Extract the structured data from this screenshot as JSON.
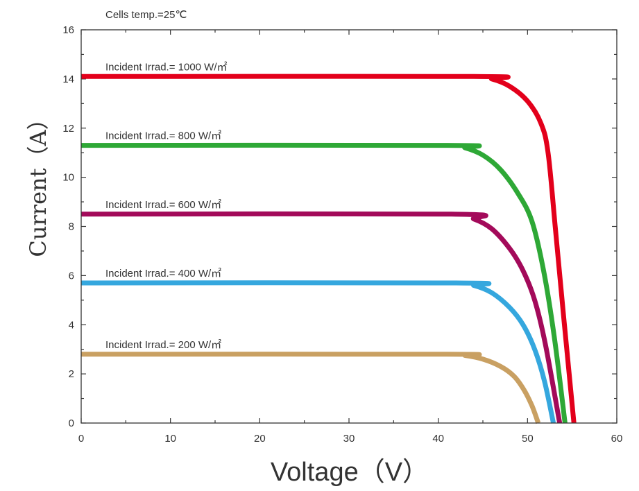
{
  "chart_data": {
    "type": "line",
    "title": "",
    "annotation": "Cells temp.=25℃",
    "xlabel": "Voltage（V）",
    "ylabel": "Current（A）",
    "xlim": [
      0,
      60
    ],
    "ylim": [
      0,
      16
    ],
    "xticks": [
      0,
      10,
      20,
      30,
      40,
      50,
      60
    ],
    "yticks": [
      0,
      2,
      4,
      6,
      8,
      10,
      12,
      14,
      16
    ],
    "grid": false,
    "series": [
      {
        "name": "Incident Irrad.= 1000 W/㎡",
        "color": "#e3001b",
        "x": [
          0,
          44,
          46,
          48,
          50,
          51.5,
          52.3,
          53.1,
          54,
          55.2
        ],
        "y": [
          14.1,
          14.1,
          14.0,
          13.7,
          13.1,
          12.2,
          11.0,
          8.0,
          4.5,
          0
        ]
      },
      {
        "name": "Incident Irrad.= 800 W/㎡",
        "color": "#2ea836",
        "x": [
          0,
          41,
          43,
          45,
          47,
          49,
          50.5,
          51.8,
          53,
          54.2
        ],
        "y": [
          11.3,
          11.3,
          11.2,
          10.9,
          10.3,
          9.3,
          8.2,
          6.2,
          3.5,
          0
        ]
      },
      {
        "name": "Incident Irrad.= 600 W/㎡",
        "color": "#a30a5a",
        "x": [
          0,
          41.5,
          44,
          46,
          48,
          49.5,
          50.8,
          52,
          53.6
        ],
        "y": [
          8.5,
          8.5,
          8.3,
          7.9,
          7.1,
          6.2,
          5.0,
          3.2,
          0
        ]
      },
      {
        "name": "Incident Irrad.= 400 W/㎡",
        "color": "#35a7de",
        "x": [
          0,
          42,
          44,
          46,
          48,
          49.5,
          50.8,
          51.9,
          52.9
        ],
        "y": [
          5.7,
          5.7,
          5.6,
          5.3,
          4.7,
          4.0,
          3.0,
          1.7,
          0
        ]
      },
      {
        "name": "Incident Irrad.= 200 W/㎡",
        "color": "#c9a062",
        "x": [
          0,
          41,
          43,
          45,
          47,
          48.5,
          49.6,
          50.5,
          51.2
        ],
        "y": [
          2.8,
          2.8,
          2.75,
          2.6,
          2.3,
          1.9,
          1.35,
          0.7,
          0
        ]
      }
    ]
  }
}
